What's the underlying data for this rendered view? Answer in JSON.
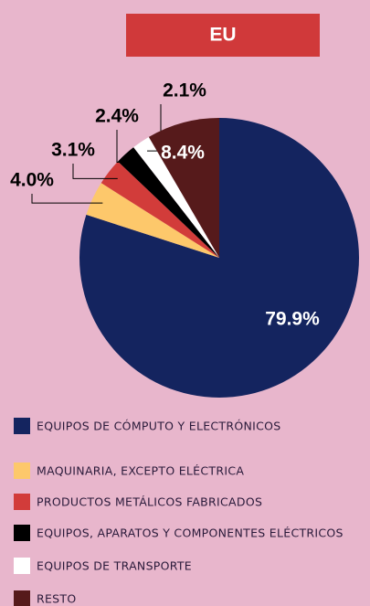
{
  "chart_data": {
    "type": "pie",
    "title": "EU",
    "categories": [
      "EQUIPOS DE CÓMPUTO Y ELECTRÓNICOS",
      "MAQUINARIA, EXCEPTO ELÉCTRICA",
      "PRODUCTOS METÁLICOS FABRICADOS",
      "EQUIPOS, APARATOS Y COMPONENTES ELÉCTRICOS",
      "EQUIPOS DE TRANSPORTE",
      "RESTO"
    ],
    "values": [
      79.9,
      4.0,
      3.1,
      2.4,
      2.1,
      8.4
    ],
    "value_labels": [
      "79.9%",
      "4.0%",
      "3.1%",
      "2.4%",
      "2.1%",
      "8.4%"
    ],
    "colors": [
      "#14245f",
      "#fdc86b",
      "#d23c3a",
      "#000000",
      "#ffffff",
      "#561a1b"
    ]
  }
}
